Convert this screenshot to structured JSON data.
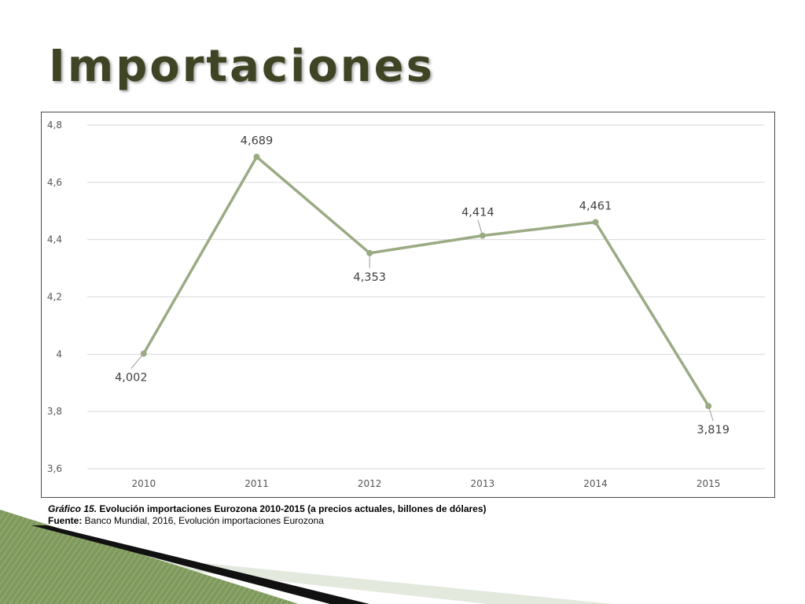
{
  "slide": {
    "title": "Importaciones",
    "caption_label": "Gráfico 15.",
    "caption_text": " Evolución importaciones Eurozona 2010-2015 (a precios actuales, billones de dólares)",
    "source_label": "Fuente:",
    "source_text": " Banco Mundial, 2016, Evolución importaciones Eurozona"
  },
  "colors": {
    "line": "#9aab84",
    "grid": "#d9d9d9",
    "title": "#3f4424"
  },
  "chart_data": {
    "type": "line",
    "title": "",
    "xlabel": "",
    "ylabel": "",
    "categories": [
      "2010",
      "2011",
      "2012",
      "2013",
      "2014",
      "2015"
    ],
    "series": [
      {
        "values": [
          4.002,
          4.689,
          4.353,
          4.414,
          4.461,
          3.819
        ]
      }
    ],
    "data_labels": [
      "4,002",
      "4,689",
      "4,353",
      "4,414",
      "4,461",
      "3,819"
    ],
    "y_ticks": [
      {
        "value": 3.6,
        "label": "3,6"
      },
      {
        "value": 3.8,
        "label": "3,8"
      },
      {
        "value": 4.0,
        "label": "4"
      },
      {
        "value": 4.2,
        "label": "4,2"
      },
      {
        "value": 4.4,
        "label": "4,4"
      },
      {
        "value": 4.6,
        "label": "4,6"
      },
      {
        "value": 4.8,
        "label": "4,8"
      }
    ],
    "ylim": [
      3.6,
      4.8
    ],
    "grid": true,
    "legend": "none"
  }
}
